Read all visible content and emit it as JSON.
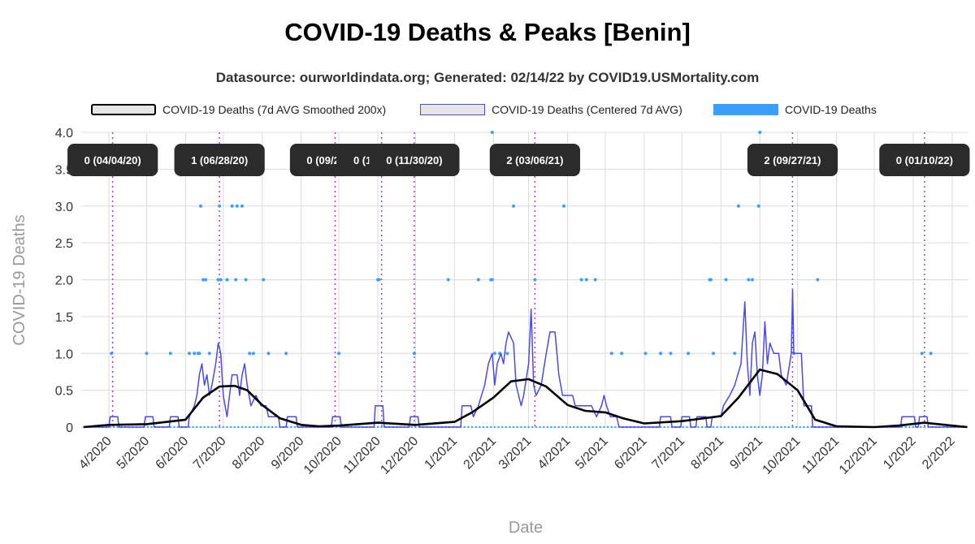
{
  "chart_data": {
    "type": "line",
    "title": "COVID-19 Deaths & Peaks [Benin]",
    "subtitle": "Datasource: ourworldindata.org; Generated: 02/14/22 by COVID19.USMortality.com",
    "xlabel": "Date",
    "ylabel": "COVID-19 Deaths",
    "ylim": [
      0,
      4
    ],
    "yticks": [
      "0",
      "0.5",
      "1.0",
      "1.5",
      "2.0",
      "2.5",
      "3.0",
      "3.5",
      "4.0"
    ],
    "xlim": [
      "2020-03-10",
      "2022-02-14"
    ],
    "xticks": [
      {
        "date": "2020-04-01",
        "label": "4/2020"
      },
      {
        "date": "2020-05-01",
        "label": "5/2020"
      },
      {
        "date": "2020-06-01",
        "label": "6/2020"
      },
      {
        "date": "2020-07-01",
        "label": "7/2020"
      },
      {
        "date": "2020-08-01",
        "label": "8/2020"
      },
      {
        "date": "2020-09-01",
        "label": "9/2020"
      },
      {
        "date": "2020-10-01",
        "label": "10/2020"
      },
      {
        "date": "2020-11-01",
        "label": "11/2020"
      },
      {
        "date": "2020-12-01",
        "label": "12/2020"
      },
      {
        "date": "2021-01-01",
        "label": "1/2021"
      },
      {
        "date": "2021-02-01",
        "label": "2/2021"
      },
      {
        "date": "2021-03-01",
        "label": "3/2021"
      },
      {
        "date": "2021-04-01",
        "label": "4/2021"
      },
      {
        "date": "2021-05-01",
        "label": "5/2021"
      },
      {
        "date": "2021-06-01",
        "label": "6/2021"
      },
      {
        "date": "2021-07-01",
        "label": "7/2021"
      },
      {
        "date": "2021-08-01",
        "label": "8/2021"
      },
      {
        "date": "2021-09-01",
        "label": "9/2021"
      },
      {
        "date": "2021-10-01",
        "label": "10/2021"
      },
      {
        "date": "2021-11-01",
        "label": "11/2021"
      },
      {
        "date": "2021-12-01",
        "label": "12/2021"
      },
      {
        "date": "2022-01-01",
        "label": "1/2022"
      },
      {
        "date": "2022-02-01",
        "label": "2/2022"
      }
    ],
    "grid": true,
    "legend_position": "top",
    "series": [
      {
        "name": "COVID-19 Deaths (7d AVG Smoothed 200x)",
        "kind": "line",
        "color": "#000000",
        "points": [
          [
            "2020-03-12",
            0
          ],
          [
            "2020-04-01",
            0.03
          ],
          [
            "2020-05-01",
            0.04
          ],
          [
            "2020-06-01",
            0.1
          ],
          [
            "2020-06-15",
            0.4
          ],
          [
            "2020-06-28",
            0.55
          ],
          [
            "2020-07-10",
            0.56
          ],
          [
            "2020-07-20",
            0.5
          ],
          [
            "2020-08-01",
            0.3
          ],
          [
            "2020-08-15",
            0.12
          ],
          [
            "2020-09-01",
            0.03
          ],
          [
            "2020-09-15",
            0.01
          ],
          [
            "2020-10-01",
            0.02
          ],
          [
            "2020-11-01",
            0.06
          ],
          [
            "2020-12-01",
            0.03
          ],
          [
            "2021-01-01",
            0.07
          ],
          [
            "2021-01-15",
            0.2
          ],
          [
            "2021-02-01",
            0.4
          ],
          [
            "2021-02-15",
            0.62
          ],
          [
            "2021-03-01",
            0.65
          ],
          [
            "2021-03-15",
            0.55
          ],
          [
            "2021-04-01",
            0.3
          ],
          [
            "2021-04-15",
            0.22
          ],
          [
            "2021-05-01",
            0.2
          ],
          [
            "2021-05-15",
            0.12
          ],
          [
            "2021-06-01",
            0.05
          ],
          [
            "2021-07-01",
            0.08
          ],
          [
            "2021-08-01",
            0.15
          ],
          [
            "2021-08-15",
            0.4
          ],
          [
            "2021-09-01",
            0.78
          ],
          [
            "2021-09-15",
            0.72
          ],
          [
            "2021-10-01",
            0.5
          ],
          [
            "2021-10-15",
            0.1
          ],
          [
            "2021-11-01",
            0.01
          ],
          [
            "2021-12-01",
            0
          ],
          [
            "2021-12-20",
            0.02
          ],
          [
            "2022-01-10",
            0.06
          ],
          [
            "2022-02-01",
            0.02
          ],
          [
            "2022-02-13",
            0
          ]
        ]
      },
      {
        "name": "COVID-19 Deaths (Centered 7d AVG)",
        "kind": "line",
        "color": "#4a4ae8",
        "points": [
          [
            "2020-03-12",
            0
          ],
          [
            "2020-04-01",
            0
          ],
          [
            "2020-04-02",
            0.14
          ],
          [
            "2020-04-08",
            0.14
          ],
          [
            "2020-04-09",
            0
          ],
          [
            "2020-04-29",
            0
          ],
          [
            "2020-04-30",
            0.14
          ],
          [
            "2020-05-06",
            0.14
          ],
          [
            "2020-05-07",
            0
          ],
          [
            "2020-05-19",
            0
          ],
          [
            "2020-05-20",
            0.14
          ],
          [
            "2020-05-26",
            0.14
          ],
          [
            "2020-05-27",
            0
          ],
          [
            "2020-06-03",
            0
          ],
          [
            "2020-06-04",
            0.14
          ],
          [
            "2020-06-08",
            0.29
          ],
          [
            "2020-06-10",
            0.43
          ],
          [
            "2020-06-12",
            0.71
          ],
          [
            "2020-06-14",
            0.86
          ],
          [
            "2020-06-16",
            0.57
          ],
          [
            "2020-06-18",
            0.71
          ],
          [
            "2020-06-20",
            0.43
          ],
          [
            "2020-06-22",
            0.57
          ],
          [
            "2020-06-25",
            0.86
          ],
          [
            "2020-06-27",
            1.14
          ],
          [
            "2020-06-29",
            1.0
          ],
          [
            "2020-07-01",
            0.43
          ],
          [
            "2020-07-04",
            0.14
          ],
          [
            "2020-07-06",
            0.43
          ],
          [
            "2020-07-08",
            0.71
          ],
          [
            "2020-07-12",
            0.71
          ],
          [
            "2020-07-14",
            0.43
          ],
          [
            "2020-07-16",
            0.71
          ],
          [
            "2020-07-18",
            0.86
          ],
          [
            "2020-07-20",
            0.57
          ],
          [
            "2020-07-23",
            0.29
          ],
          [
            "2020-07-27",
            0.43
          ],
          [
            "2020-07-31",
            0.29
          ],
          [
            "2020-08-04",
            0.29
          ],
          [
            "2020-08-06",
            0.14
          ],
          [
            "2020-08-14",
            0.14
          ],
          [
            "2020-08-15",
            0
          ],
          [
            "2020-08-20",
            0
          ],
          [
            "2020-08-21",
            0.14
          ],
          [
            "2020-08-28",
            0.14
          ],
          [
            "2020-08-29",
            0
          ],
          [
            "2020-09-25",
            0
          ],
          [
            "2020-09-26",
            0.14
          ],
          [
            "2020-10-02",
            0.14
          ],
          [
            "2020-10-03",
            0
          ],
          [
            "2020-10-29",
            0
          ],
          [
            "2020-10-30",
            0.29
          ],
          [
            "2020-11-05",
            0.29
          ],
          [
            "2020-11-06",
            0
          ],
          [
            "2020-11-26",
            0
          ],
          [
            "2020-11-27",
            0.14
          ],
          [
            "2020-12-03",
            0.14
          ],
          [
            "2020-12-04",
            0
          ],
          [
            "2021-01-06",
            0
          ],
          [
            "2021-01-07",
            0.29
          ],
          [
            "2021-01-14",
            0.29
          ],
          [
            "2021-01-16",
            0.14
          ],
          [
            "2021-01-20",
            0.29
          ],
          [
            "2021-01-25",
            0.57
          ],
          [
            "2021-01-28",
            0.86
          ],
          [
            "2021-01-31",
            1.0
          ],
          [
            "2021-02-02",
            0.57
          ],
          [
            "2021-02-04",
            0.86
          ],
          [
            "2021-02-07",
            1.0
          ],
          [
            "2021-02-09",
            0.86
          ],
          [
            "2021-02-11",
            1.14
          ],
          [
            "2021-02-13",
            1.29
          ],
          [
            "2021-02-17",
            1.14
          ],
          [
            "2021-02-19",
            0.57
          ],
          [
            "2021-02-23",
            0.29
          ],
          [
            "2021-02-25",
            0.43
          ],
          [
            "2021-03-01",
            0.86
          ],
          [
            "2021-03-03",
            1.6
          ],
          [
            "2021-03-05",
            0.57
          ],
          [
            "2021-03-07",
            0.43
          ],
          [
            "2021-03-11",
            0.57
          ],
          [
            "2021-03-15",
            1.0
          ],
          [
            "2021-03-18",
            1.29
          ],
          [
            "2021-03-22",
            1.29
          ],
          [
            "2021-03-25",
            0.71
          ],
          [
            "2021-03-28",
            0.43
          ],
          [
            "2021-04-05",
            0.43
          ],
          [
            "2021-04-07",
            0.29
          ],
          [
            "2021-04-20",
            0.29
          ],
          [
            "2021-04-24",
            0.14
          ],
          [
            "2021-04-28",
            0.29
          ],
          [
            "2021-04-30",
            0.43
          ],
          [
            "2021-05-02",
            0.29
          ],
          [
            "2021-05-05",
            0.14
          ],
          [
            "2021-05-10",
            0.14
          ],
          [
            "2021-05-12",
            0
          ],
          [
            "2021-06-13",
            0
          ],
          [
            "2021-06-14",
            0.14
          ],
          [
            "2021-06-22",
            0.14
          ],
          [
            "2021-06-23",
            0
          ],
          [
            "2021-06-30",
            0
          ],
          [
            "2021-07-01",
            0.14
          ],
          [
            "2021-07-07",
            0.14
          ],
          [
            "2021-07-08",
            0
          ],
          [
            "2021-07-12",
            0
          ],
          [
            "2021-07-13",
            0.14
          ],
          [
            "2021-07-20",
            0.14
          ],
          [
            "2021-07-21",
            0
          ],
          [
            "2021-07-24",
            0
          ],
          [
            "2021-07-25",
            0.14
          ],
          [
            "2021-08-01",
            0.14
          ],
          [
            "2021-08-03",
            0.29
          ],
          [
            "2021-08-08",
            0.43
          ],
          [
            "2021-08-12",
            0.57
          ],
          [
            "2021-08-17",
            0.86
          ],
          [
            "2021-08-20",
            1.7
          ],
          [
            "2021-08-22",
            0.86
          ],
          [
            "2021-08-24",
            0.43
          ],
          [
            "2021-08-26",
            1.14
          ],
          [
            "2021-08-28",
            1.29
          ],
          [
            "2021-08-30",
            0.71
          ],
          [
            "2021-09-01",
            0.43
          ],
          [
            "2021-09-03",
            0.71
          ],
          [
            "2021-09-05",
            1.43
          ],
          [
            "2021-09-07",
            0.86
          ],
          [
            "2021-09-09",
            1.14
          ],
          [
            "2021-09-12",
            1.0
          ],
          [
            "2021-09-16",
            1.0
          ],
          [
            "2021-09-18",
            0.71
          ],
          [
            "2021-09-22",
            0.57
          ],
          [
            "2021-09-26",
            1.0
          ],
          [
            "2021-09-27",
            1.86
          ],
          [
            "2021-09-28",
            1.0
          ],
          [
            "2021-10-04",
            1.0
          ],
          [
            "2021-10-06",
            0.29
          ],
          [
            "2021-10-12",
            0.29
          ],
          [
            "2021-10-13",
            0
          ],
          [
            "2021-12-22",
            0
          ],
          [
            "2021-12-23",
            0.14
          ],
          [
            "2022-01-02",
            0.14
          ],
          [
            "2022-01-03",
            0
          ],
          [
            "2022-01-05",
            0
          ],
          [
            "2022-01-06",
            0.14
          ],
          [
            "2022-01-12",
            0.14
          ],
          [
            "2022-01-13",
            0
          ],
          [
            "2022-02-13",
            0
          ]
        ]
      },
      {
        "name": "COVID-19 Deaths",
        "kind": "scatter",
        "color": "#3aa0ff",
        "points": [
          [
            "2020-04-03",
            1
          ],
          [
            "2020-05-01",
            1
          ],
          [
            "2020-05-20",
            1
          ],
          [
            "2020-06-04",
            1
          ],
          [
            "2020-06-08",
            1
          ],
          [
            "2020-06-11",
            1
          ],
          [
            "2020-06-12",
            1
          ],
          [
            "2020-06-15",
            2
          ],
          [
            "2020-06-17",
            2
          ],
          [
            "2020-06-20",
            1
          ],
          [
            "2020-06-27",
            2
          ],
          [
            "2020-06-28",
            3
          ],
          [
            "2020-06-29",
            2
          ],
          [
            "2020-07-04",
            2
          ],
          [
            "2020-07-08",
            3
          ],
          [
            "2020-07-12",
            3
          ],
          [
            "2020-07-16",
            3
          ],
          [
            "2020-07-11",
            2
          ],
          [
            "2020-07-19",
            2
          ],
          [
            "2020-07-22",
            1
          ],
          [
            "2020-07-25",
            1
          ],
          [
            "2020-08-06",
            1
          ],
          [
            "2020-08-20",
            1
          ],
          [
            "2020-06-13",
            3
          ],
          [
            "2020-08-02",
            2
          ],
          [
            "2020-10-01",
            1
          ],
          [
            "2020-11-01",
            2
          ],
          [
            "2020-11-02",
            2
          ],
          [
            "2020-11-30",
            1
          ],
          [
            "2021-01-20",
            2
          ],
          [
            "2021-01-30",
            2
          ],
          [
            "2021-02-02",
            1
          ],
          [
            "2021-02-06",
            1
          ],
          [
            "2021-02-12",
            1
          ],
          [
            "2021-02-17",
            3
          ],
          [
            "2021-03-06",
            2
          ],
          [
            "2021-03-29",
            3
          ],
          [
            "2021-04-12",
            2
          ],
          [
            "2021-04-16",
            2
          ],
          [
            "2021-04-23",
            2
          ],
          [
            "2021-05-06",
            1
          ],
          [
            "2021-05-14",
            1
          ],
          [
            "2021-06-02",
            1
          ],
          [
            "2021-06-14",
            1
          ],
          [
            "2021-06-22",
            1
          ],
          [
            "2021-07-06",
            1
          ],
          [
            "2021-07-26",
            1
          ],
          [
            "2021-07-23",
            2
          ],
          [
            "2021-08-05",
            2
          ],
          [
            "2021-08-15",
            3
          ],
          [
            "2021-08-26",
            2
          ],
          [
            "2021-08-31",
            3
          ],
          [
            "2021-10-17",
            2
          ],
          [
            "2022-01-08",
            1
          ],
          [
            "2022-01-15",
            1
          ],
          [
            "2020-12-27",
            2
          ],
          [
            "2021-01-31",
            4
          ],
          [
            "2021-09-01",
            4
          ],
          [
            "2021-07-24",
            2
          ],
          [
            "2021-08-12",
            1
          ],
          [
            "2021-08-23",
            2
          ],
          [
            "2021-09-28",
            1
          ],
          [
            "2021-01-31",
            2
          ]
        ]
      }
    ],
    "peaks": [
      {
        "date": "2020-04-04",
        "label": "0 (04/04/20)"
      },
      {
        "date": "2020-06-28",
        "label": "1 (06/28/20)"
      },
      {
        "date": "2020-09-28",
        "label": "0 (09/28/20)"
      },
      {
        "date": "2020-11-04",
        "label": "0 (11/04/20)"
      },
      {
        "date": "2020-11-30",
        "label": "0 (11/30/20)"
      },
      {
        "date": "2021-03-06",
        "label": "2 (03/06/21)"
      },
      {
        "date": "2021-09-27",
        "label": "2 (09/27/21)"
      },
      {
        "date": "2022-01-10",
        "label": "0 (01/10/22)"
      }
    ]
  }
}
